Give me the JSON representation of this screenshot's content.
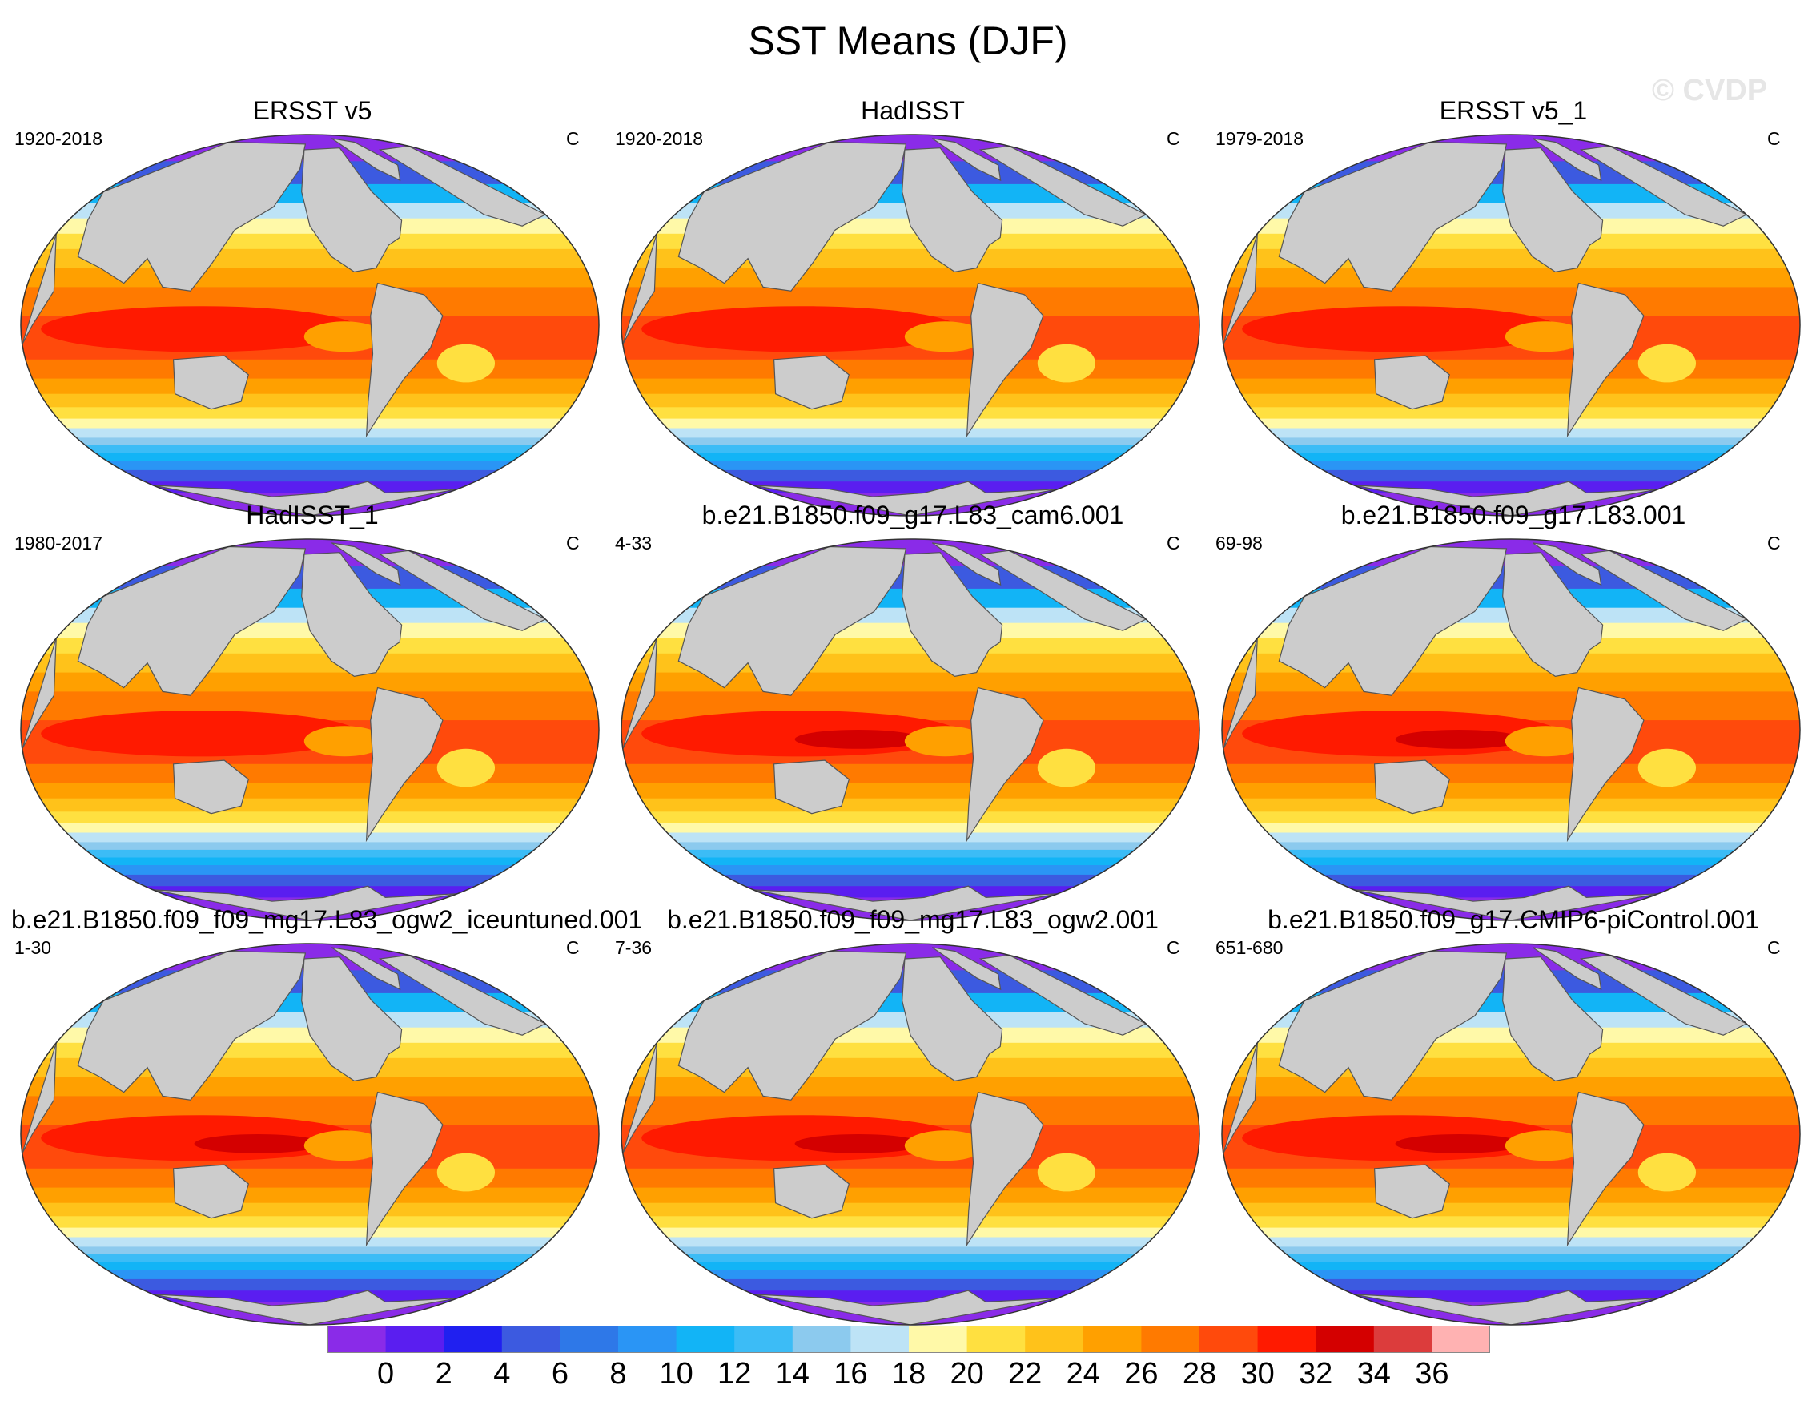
{
  "figure": {
    "title": "SST Means (DJF)",
    "watermark": "© CVDP",
    "units": "C"
  },
  "panels": [
    {
      "title": "ERSST v5",
      "period": "1920-2018",
      "units": "C",
      "pattern": "obs_coarse"
    },
    {
      "title": "HadISST",
      "period": "1920-2018",
      "units": "C",
      "pattern": "obs"
    },
    {
      "title": "ERSST v5_1",
      "period": "1979-2018",
      "units": "C",
      "pattern": "obs_coarse"
    },
    {
      "title": "HadISST_1",
      "period": "1980-2017",
      "units": "C",
      "pattern": "obs"
    },
    {
      "title": "b.e21.B1850.f09_g17.L83_cam6.001",
      "period": "4-33",
      "units": "C",
      "pattern": "model"
    },
    {
      "title": "b.e21.B1850.f09_g17.L83.001",
      "period": "69-98",
      "units": "C",
      "pattern": "model"
    },
    {
      "title": "b.e21.B1850.f09_f09_mg17.L83_ogw2_iceuntuned.001",
      "period": "1-30",
      "units": "C",
      "pattern": "model"
    },
    {
      "title": "b.e21.B1850.f09_f09_mg17.L83_ogw2.001",
      "period": "7-36",
      "units": "C",
      "pattern": "model"
    },
    {
      "title": "b.e21.B1850.f09_g17.CMIP6-piControl.001",
      "period": "651-680",
      "units": "C",
      "pattern": "model"
    }
  ],
  "colorbar": {
    "labels": [
      "0",
      "2",
      "4",
      "6",
      "8",
      "10",
      "12",
      "14",
      "16",
      "18",
      "20",
      "22",
      "24",
      "26",
      "28",
      "30",
      "32",
      "34",
      "36"
    ],
    "levels": [
      0,
      2,
      4,
      6,
      8,
      10,
      12,
      14,
      16,
      18,
      20,
      22,
      24,
      26,
      28,
      30,
      32,
      34,
      36
    ],
    "colors": [
      "#8a2be8",
      "#5a1ef0",
      "#2020f0",
      "#3c5ae0",
      "#2e78e8",
      "#2a95f5",
      "#12b4f6",
      "#3cbcf6",
      "#8ccaee",
      "#bde3f6",
      "#fff9a8",
      "#ffe040",
      "#ffc21a",
      "#ffa000",
      "#ff7a00",
      "#ff4a0c",
      "#ff1a00",
      "#d40000",
      "#dc3c3c",
      "#ffb2b2"
    ]
  }
}
